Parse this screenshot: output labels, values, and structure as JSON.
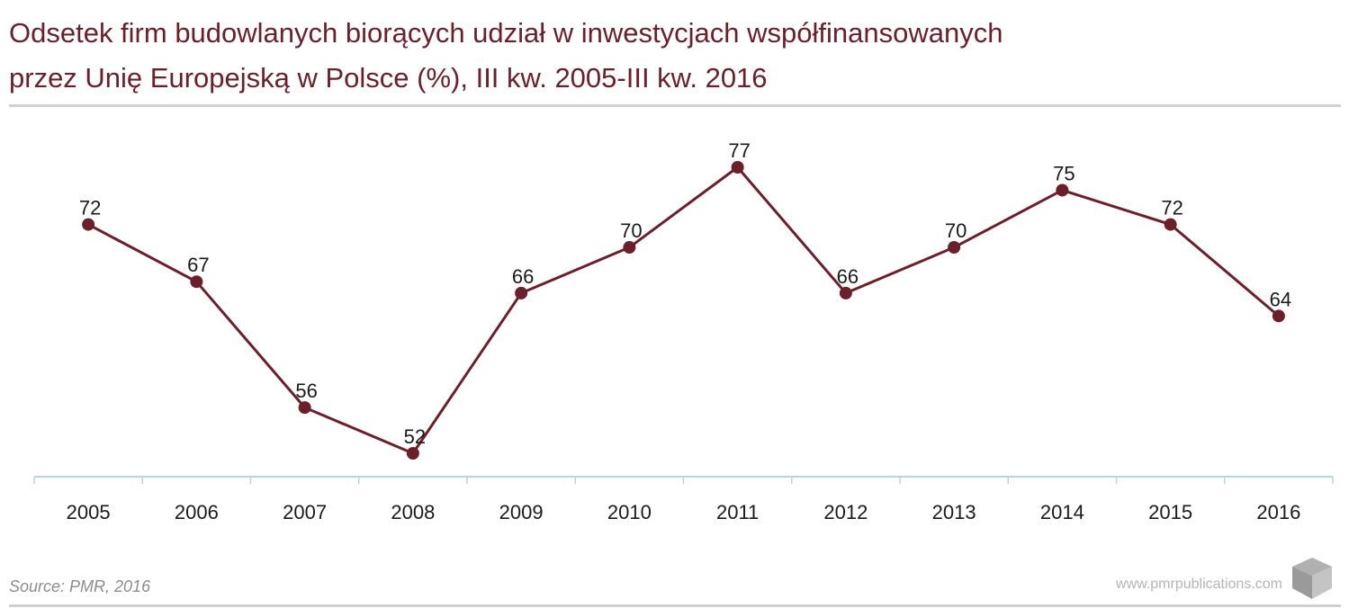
{
  "header": {
    "title_line1": "Odsetek firm budowlanych biorących udział w inwestycjach współfinansowanych",
    "title_line2": "przez Unię Europejską w Polsce (%), III kw. 2005-III kw. 2016"
  },
  "footer": {
    "source": "Source: PMR, 2016",
    "website": "www.pmrpublications.com"
  },
  "colors": {
    "accent": "#6b1f2a",
    "axis": "#b9d3e0",
    "rule": "#d0d0d0",
    "text": "#1a1a1a"
  },
  "chart_data": {
    "type": "line",
    "title": "Odsetek firm budowlanych biorących udział w inwestycjach współfinansowanych przez Unię Europejską w Polsce (%), III kw. 2005-III kw. 2016",
    "xlabel": "",
    "ylabel": "",
    "categories": [
      "2005",
      "2006",
      "2007",
      "2008",
      "2009",
      "2010",
      "2011",
      "2012",
      "2013",
      "2014",
      "2015",
      "2016"
    ],
    "values": [
      72,
      67,
      56,
      52,
      66,
      70,
      77,
      66,
      70,
      75,
      72,
      64
    ],
    "data_labels": [
      "72",
      "67",
      "56",
      "52",
      "66",
      "70",
      "77",
      "66",
      "70",
      "75",
      "72",
      "64"
    ],
    "ylim": [
      48,
      79
    ],
    "grid": false,
    "legend": "none"
  }
}
